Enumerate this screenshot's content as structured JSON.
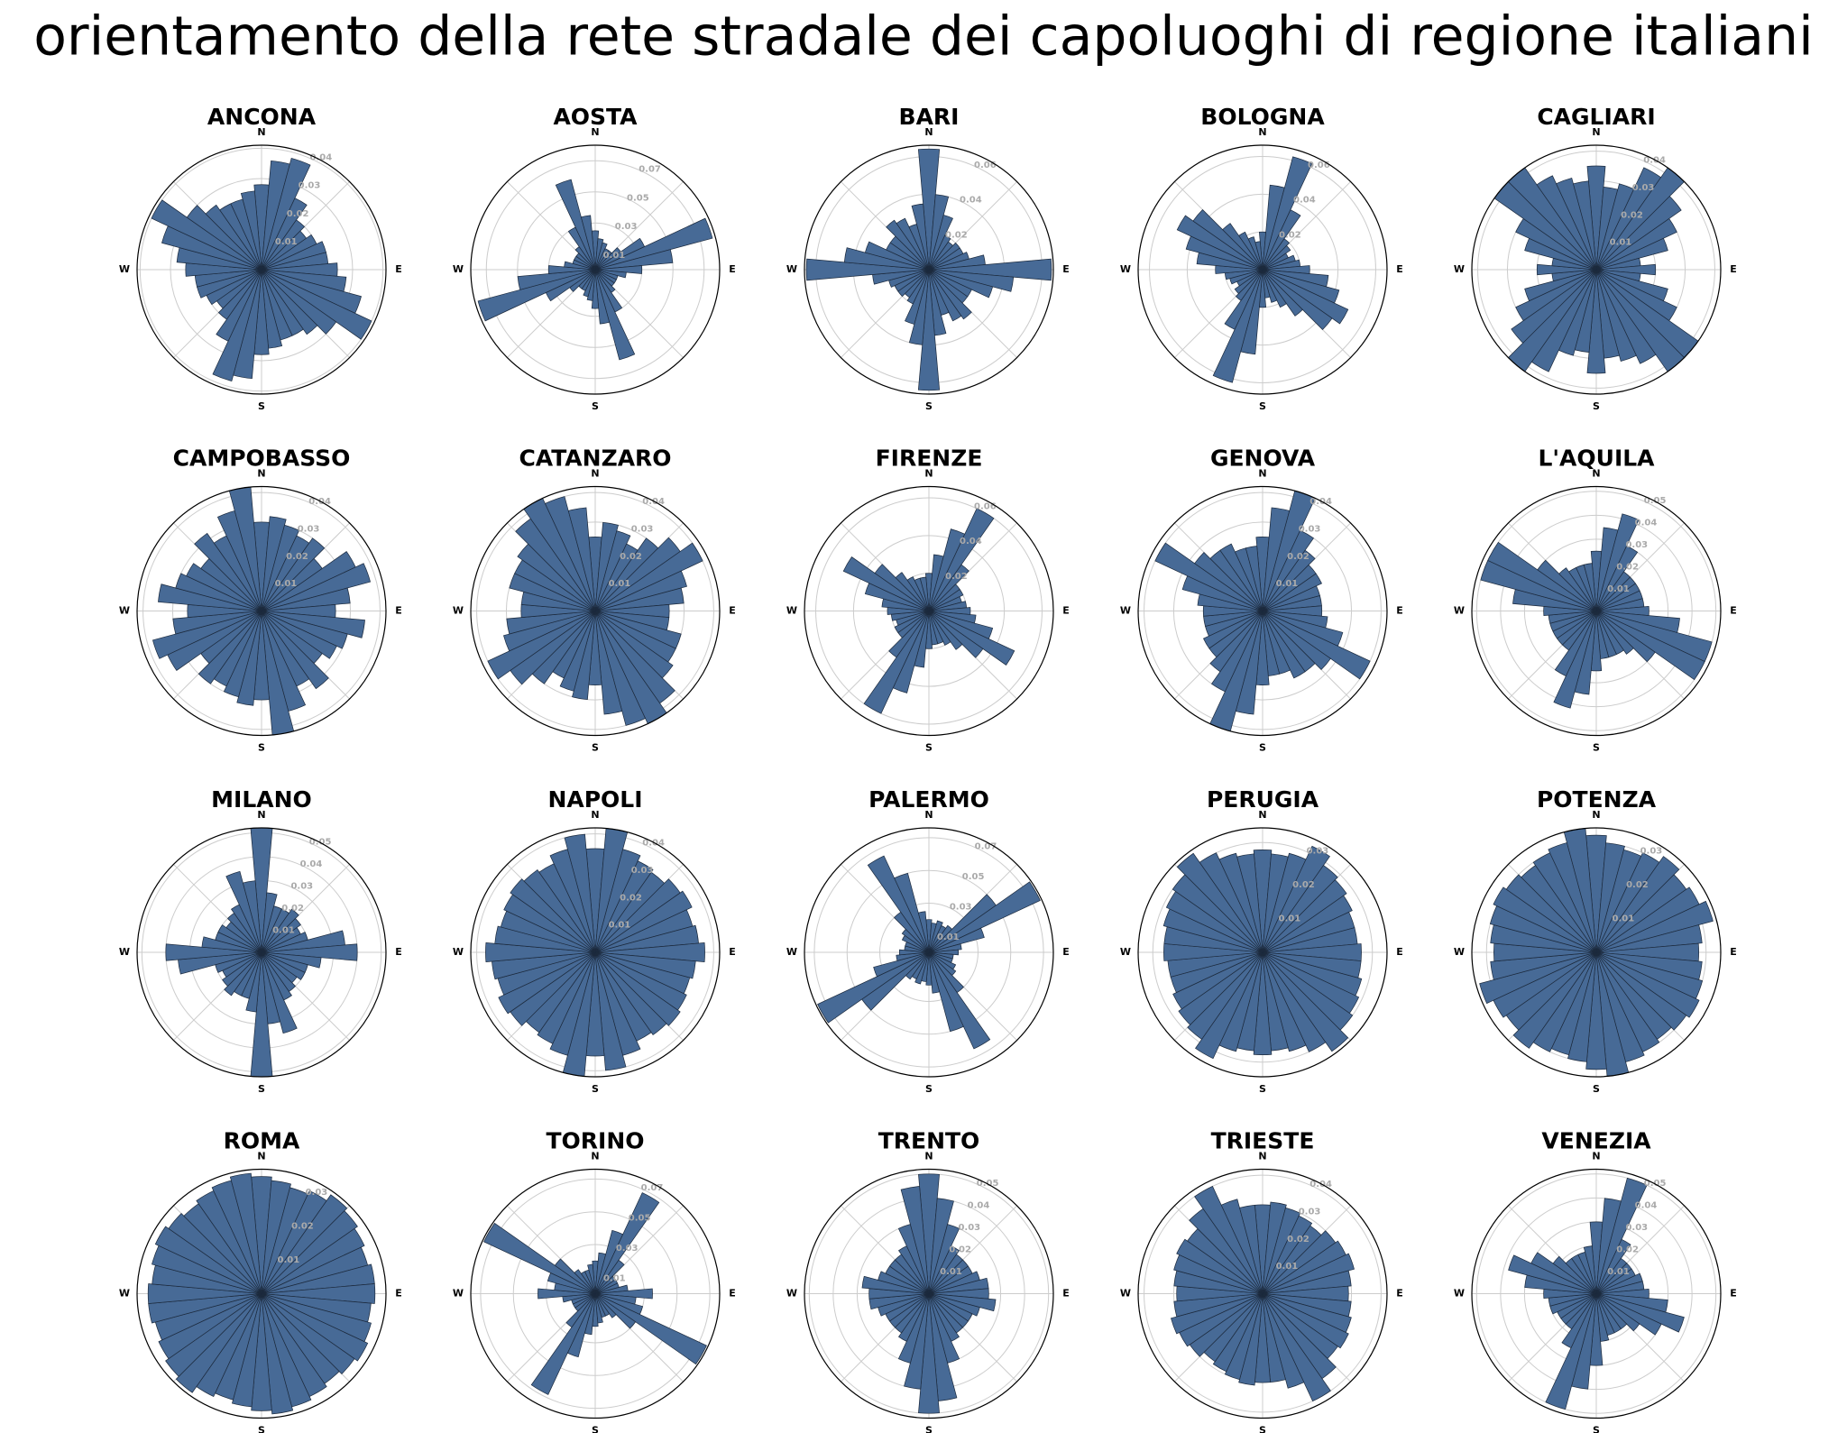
{
  "title": "orientamento della rete stradale dei capoluoghi di regione italiani",
  "chart_data": [
    {
      "type": "polar_bar",
      "title": "ANCONA",
      "directions": [
        "N",
        "E",
        "S",
        "W"
      ],
      "color": "#476a96",
      "ylim": [
        0,
        0.041
      ],
      "yticks": [
        0.01,
        0.02,
        0.03,
        0.04
      ],
      "values": [
        0.028,
        0.036,
        0.038,
        0.026,
        0.02,
        0.018,
        0.02,
        0.022,
        0.022,
        0.025,
        0.028,
        0.034,
        0.04,
        0.03,
        0.026,
        0.024,
        0.024,
        0.026,
        0.028,
        0.036,
        0.038,
        0.026,
        0.02,
        0.018,
        0.02,
        0.022,
        0.022,
        0.025,
        0.028,
        0.034,
        0.04,
        0.03,
        0.026,
        0.024,
        0.024,
        0.026
      ]
    },
    {
      "type": "polar_bar",
      "title": "AOSTA",
      "directions": [
        "N",
        "E",
        "S",
        "W"
      ],
      "color": "#476a96",
      "ylim": [
        0,
        0.08
      ],
      "yticks": [
        0.01,
        0.03,
        0.05,
        0.07
      ],
      "values": [
        0.025,
        0.02,
        0.018,
        0.015,
        0.015,
        0.02,
        0.035,
        0.078,
        0.05,
        0.03,
        0.02,
        0.015,
        0.015,
        0.015,
        0.018,
        0.03,
        0.06,
        0.035,
        0.025,
        0.02,
        0.018,
        0.015,
        0.015,
        0.02,
        0.035,
        0.078,
        0.05,
        0.03,
        0.02,
        0.015,
        0.015,
        0.015,
        0.018,
        0.03,
        0.06,
        0.035
      ]
    },
    {
      "type": "polar_bar",
      "title": "BARI",
      "directions": [
        "N",
        "E",
        "S",
        "W"
      ],
      "color": "#476a96",
      "ylim": [
        0,
        0.066
      ],
      "yticks": [
        0.02,
        0.04,
        0.06
      ],
      "values": [
        0.064,
        0.04,
        0.03,
        0.02,
        0.018,
        0.02,
        0.02,
        0.022,
        0.03,
        0.065,
        0.045,
        0.035,
        0.025,
        0.025,
        0.032,
        0.03,
        0.025,
        0.035,
        0.064,
        0.04,
        0.03,
        0.02,
        0.018,
        0.02,
        0.02,
        0.022,
        0.03,
        0.065,
        0.045,
        0.035,
        0.025,
        0.025,
        0.032,
        0.03,
        0.025,
        0.035
      ]
    },
    {
      "type": "polar_bar",
      "title": "BOLOGNA",
      "directions": [
        "N",
        "E",
        "S",
        "W"
      ],
      "color": "#476a96",
      "ylim": [
        0,
        0.066
      ],
      "yticks": [
        0.02,
        0.04,
        0.06
      ],
      "values": [
        0.02,
        0.045,
        0.062,
        0.035,
        0.02,
        0.018,
        0.015,
        0.018,
        0.02,
        0.025,
        0.035,
        0.042,
        0.05,
        0.045,
        0.03,
        0.022,
        0.018,
        0.015,
        0.02,
        0.045,
        0.062,
        0.035,
        0.02,
        0.018,
        0.015,
        0.018,
        0.02,
        0.025,
        0.035,
        0.042,
        0.05,
        0.045,
        0.03,
        0.022,
        0.018,
        0.015
      ]
    },
    {
      "type": "polar_bar",
      "title": "CAGLIARI",
      "directions": [
        "N",
        "E",
        "S",
        "W"
      ],
      "color": "#476a96",
      "ylim": [
        0,
        0.042
      ],
      "yticks": [
        0.01,
        0.02,
        0.03,
        0.04
      ],
      "values": [
        0.035,
        0.028,
        0.03,
        0.038,
        0.042,
        0.035,
        0.03,
        0.025,
        0.015,
        0.02,
        0.015,
        0.025,
        0.03,
        0.042,
        0.042,
        0.035,
        0.032,
        0.03,
        0.035,
        0.028,
        0.03,
        0.038,
        0.042,
        0.035,
        0.03,
        0.025,
        0.015,
        0.02,
        0.015,
        0.025,
        0.03,
        0.042,
        0.042,
        0.035,
        0.032,
        0.03
      ]
    },
    {
      "type": "polar_bar",
      "title": "CAMPOBASSO",
      "directions": [
        "N",
        "E",
        "S",
        "W"
      ],
      "color": "#476a96",
      "ylim": [
        0,
        0.042
      ],
      "yticks": [
        0.01,
        0.02,
        0.03,
        0.04
      ],
      "values": [
        0.03,
        0.032,
        0.03,
        0.028,
        0.03,
        0.025,
        0.035,
        0.038,
        0.03,
        0.025,
        0.035,
        0.03,
        0.028,
        0.025,
        0.032,
        0.028,
        0.035,
        0.042,
        0.03,
        0.032,
        0.03,
        0.028,
        0.03,
        0.025,
        0.035,
        0.038,
        0.03,
        0.025,
        0.035,
        0.03,
        0.028,
        0.025,
        0.032,
        0.028,
        0.035,
        0.042
      ]
    },
    {
      "type": "polar_bar",
      "title": "CATANZARO",
      "directions": [
        "N",
        "E",
        "S",
        "W"
      ],
      "color": "#476a96",
      "ylim": [
        0,
        0.042
      ],
      "yticks": [
        0.01,
        0.02,
        0.03,
        0.04
      ],
      "values": [
        0.025,
        0.03,
        0.028,
        0.025,
        0.03,
        0.035,
        0.04,
        0.032,
        0.03,
        0.025,
        0.025,
        0.03,
        0.03,
        0.032,
        0.038,
        0.042,
        0.04,
        0.035,
        0.025,
        0.03,
        0.028,
        0.025,
        0.03,
        0.035,
        0.04,
        0.032,
        0.03,
        0.025,
        0.025,
        0.03,
        0.03,
        0.032,
        0.038,
        0.042,
        0.04,
        0.035
      ]
    },
    {
      "type": "polar_bar",
      "title": "FIRENZE",
      "directions": [
        "N",
        "E",
        "S",
        "W"
      ],
      "color": "#476a96",
      "ylim": [
        0,
        0.066
      ],
      "yticks": [
        0.02,
        0.04,
        0.06
      ],
      "values": [
        0.02,
        0.03,
        0.045,
        0.06,
        0.03,
        0.02,
        0.02,
        0.018,
        0.02,
        0.022,
        0.025,
        0.035,
        0.05,
        0.035,
        0.025,
        0.02,
        0.018,
        0.018,
        0.02,
        0.03,
        0.045,
        0.06,
        0.03,
        0.02,
        0.02,
        0.018,
        0.02,
        0.022,
        0.025,
        0.035,
        0.05,
        0.035,
        0.025,
        0.02,
        0.018,
        0.018
      ]
    },
    {
      "type": "polar_bar",
      "title": "GENOVA",
      "directions": [
        "N",
        "E",
        "S",
        "W"
      ],
      "color": "#476a96",
      "ylim": [
        0,
        0.042
      ],
      "yticks": [
        0.01,
        0.02,
        0.03,
        0.04
      ],
      "values": [
        0.025,
        0.035,
        0.042,
        0.03,
        0.025,
        0.022,
        0.022,
        0.02,
        0.02,
        0.02,
        0.022,
        0.028,
        0.04,
        0.028,
        0.025,
        0.025,
        0.022,
        0.022,
        0.025,
        0.035,
        0.042,
        0.03,
        0.025,
        0.022,
        0.022,
        0.02,
        0.02,
        0.02,
        0.022,
        0.028,
        0.04,
        0.028,
        0.025,
        0.025,
        0.022,
        0.022
      ]
    },
    {
      "type": "polar_bar",
      "title": "L'AQUILA",
      "directions": [
        "N",
        "E",
        "S",
        "W"
      ],
      "color": "#476a96",
      "ylim": [
        0,
        0.052
      ],
      "yticks": [
        0.01,
        0.02,
        0.03,
        0.04,
        0.05
      ],
      "values": [
        0.025,
        0.035,
        0.042,
        0.03,
        0.02,
        0.02,
        0.02,
        0.02,
        0.02,
        0.022,
        0.035,
        0.05,
        0.05,
        0.03,
        0.022,
        0.02,
        0.02,
        0.02,
        0.025,
        0.035,
        0.042,
        0.03,
        0.02,
        0.02,
        0.02,
        0.02,
        0.02,
        0.022,
        0.035,
        0.05,
        0.05,
        0.03,
        0.022,
        0.02,
        0.02,
        0.02
      ]
    },
    {
      "type": "polar_bar",
      "title": "MILANO",
      "directions": [
        "N",
        "E",
        "S",
        "W"
      ],
      "color": "#476a96",
      "ylim": [
        0,
        0.052
      ],
      "yticks": [
        0.01,
        0.02,
        0.03,
        0.04,
        0.05
      ],
      "values": [
        0.052,
        0.025,
        0.02,
        0.02,
        0.022,
        0.02,
        0.018,
        0.02,
        0.035,
        0.04,
        0.025,
        0.02,
        0.02,
        0.018,
        0.02,
        0.022,
        0.035,
        0.03,
        0.052,
        0.025,
        0.02,
        0.02,
        0.022,
        0.02,
        0.018,
        0.02,
        0.035,
        0.04,
        0.025,
        0.02,
        0.02,
        0.018,
        0.02,
        0.022,
        0.035,
        0.03
      ]
    },
    {
      "type": "polar_bar",
      "title": "NAPOLI",
      "directions": [
        "N",
        "E",
        "S",
        "W"
      ],
      "color": "#476a96",
      "ylim": [
        0,
        0.042
      ],
      "yticks": [
        0.01,
        0.02,
        0.03,
        0.04
      ],
      "values": [
        0.035,
        0.042,
        0.036,
        0.034,
        0.033,
        0.035,
        0.036,
        0.034,
        0.035,
        0.037,
        0.034,
        0.033,
        0.034,
        0.035,
        0.034,
        0.033,
        0.036,
        0.04,
        0.035,
        0.042,
        0.036,
        0.034,
        0.033,
        0.035,
        0.036,
        0.034,
        0.035,
        0.037,
        0.034,
        0.033,
        0.034,
        0.035,
        0.034,
        0.033,
        0.036,
        0.04
      ]
    },
    {
      "type": "polar_bar",
      "title": "PALERMO",
      "directions": [
        "N",
        "E",
        "S",
        "W"
      ],
      "color": "#476a96",
      "ylim": [
        0,
        0.076
      ],
      "yticks": [
        0.01,
        0.03,
        0.05,
        0.07
      ],
      "values": [
        0.02,
        0.018,
        0.02,
        0.018,
        0.02,
        0.05,
        0.075,
        0.035,
        0.02,
        0.018,
        0.015,
        0.015,
        0.018,
        0.02,
        0.03,
        0.065,
        0.05,
        0.025,
        0.02,
        0.018,
        0.02,
        0.018,
        0.02,
        0.05,
        0.075,
        0.035,
        0.02,
        0.018,
        0.015,
        0.015,
        0.018,
        0.02,
        0.03,
        0.065,
        0.05,
        0.025
      ]
    },
    {
      "type": "polar_bar",
      "title": "PERUGIA",
      "directions": [
        "N",
        "E",
        "S",
        "W"
      ],
      "color": "#476a96",
      "ylim": [
        0,
        0.034
      ],
      "yticks": [
        0.01,
        0.02,
        0.03
      ],
      "values": [
        0.028,
        0.027,
        0.028,
        0.032,
        0.029,
        0.028,
        0.027,
        0.026,
        0.026,
        0.027,
        0.027,
        0.028,
        0.029,
        0.03,
        0.033,
        0.03,
        0.028,
        0.027,
        0.028,
        0.027,
        0.028,
        0.032,
        0.029,
        0.028,
        0.027,
        0.026,
        0.026,
        0.027,
        0.027,
        0.028,
        0.029,
        0.03,
        0.033,
        0.03,
        0.028,
        0.027
      ]
    },
    {
      "type": "polar_bar",
      "title": "POTENZA",
      "directions": [
        "N",
        "E",
        "S",
        "W"
      ],
      "color": "#476a96",
      "ylim": [
        0,
        0.034
      ],
      "yticks": [
        0.01,
        0.02,
        0.03
      ],
      "values": [
        0.032,
        0.03,
        0.029,
        0.03,
        0.032,
        0.03,
        0.031,
        0.033,
        0.029,
        0.028,
        0.029,
        0.03,
        0.031,
        0.03,
        0.029,
        0.03,
        0.031,
        0.034,
        0.032,
        0.03,
        0.029,
        0.03,
        0.032,
        0.03,
        0.031,
        0.033,
        0.029,
        0.028,
        0.029,
        0.03,
        0.031,
        0.03,
        0.029,
        0.03,
        0.031,
        0.034
      ]
    },
    {
      "type": "polar_bar",
      "title": "ROMA",
      "directions": [
        "N",
        "E",
        "S",
        "W"
      ],
      "color": "#476a96",
      "ylim": [
        0,
        0.034
      ],
      "yticks": [
        0.01,
        0.02,
        0.03
      ],
      "values": [
        0.032,
        0.031,
        0.03,
        0.031,
        0.033,
        0.032,
        0.031,
        0.03,
        0.031,
        0.031,
        0.03,
        0.031,
        0.032,
        0.031,
        0.03,
        0.031,
        0.032,
        0.033,
        0.032,
        0.031,
        0.03,
        0.031,
        0.033,
        0.032,
        0.031,
        0.03,
        0.031,
        0.031,
        0.03,
        0.031,
        0.032,
        0.031,
        0.03,
        0.031,
        0.032,
        0.033
      ]
    },
    {
      "type": "polar_bar",
      "title": "TORINO",
      "directions": [
        "N",
        "E",
        "S",
        "W"
      ],
      "color": "#476a96",
      "ylim": [
        0,
        0.076
      ],
      "yticks": [
        0.01,
        0.03,
        0.05,
        0.07
      ],
      "values": [
        0.02,
        0.025,
        0.04,
        0.068,
        0.025,
        0.015,
        0.015,
        0.015,
        0.02,
        0.035,
        0.025,
        0.03,
        0.075,
        0.03,
        0.018,
        0.015,
        0.015,
        0.018,
        0.02,
        0.025,
        0.04,
        0.068,
        0.025,
        0.015,
        0.015,
        0.015,
        0.02,
        0.035,
        0.025,
        0.03,
        0.075,
        0.03,
        0.018,
        0.015,
        0.015,
        0.018
      ]
    },
    {
      "type": "polar_bar",
      "title": "TRENTO",
      "directions": [
        "N",
        "E",
        "S",
        "W"
      ],
      "color": "#476a96",
      "ylim": [
        0,
        0.052
      ],
      "yticks": [
        0.01,
        0.02,
        0.03,
        0.04,
        0.05
      ],
      "values": [
        0.05,
        0.04,
        0.03,
        0.022,
        0.02,
        0.02,
        0.02,
        0.022,
        0.025,
        0.025,
        0.028,
        0.022,
        0.02,
        0.02,
        0.02,
        0.022,
        0.03,
        0.045,
        0.05,
        0.04,
        0.03,
        0.022,
        0.02,
        0.02,
        0.02,
        0.022,
        0.025,
        0.025,
        0.028,
        0.022,
        0.02,
        0.02,
        0.02,
        0.022,
        0.03,
        0.045
      ]
    },
    {
      "type": "polar_bar",
      "title": "TRIESTE",
      "directions": [
        "N",
        "E",
        "S",
        "W"
      ],
      "color": "#476a96",
      "ylim": [
        0,
        0.042
      ],
      "yticks": [
        0.01,
        0.02,
        0.03,
        0.04
      ],
      "values": [
        0.03,
        0.031,
        0.03,
        0.029,
        0.028,
        0.03,
        0.031,
        0.032,
        0.03,
        0.029,
        0.03,
        0.031,
        0.032,
        0.031,
        0.035,
        0.04,
        0.033,
        0.03,
        0.03,
        0.031,
        0.03,
        0.029,
        0.028,
        0.03,
        0.031,
        0.032,
        0.03,
        0.029,
        0.03,
        0.031,
        0.032,
        0.031,
        0.035,
        0.04,
        0.033,
        0.03
      ]
    },
    {
      "type": "polar_bar",
      "title": "VENEZIA",
      "directions": [
        "N",
        "E",
        "S",
        "W"
      ],
      "color": "#476a96",
      "ylim": [
        0,
        0.052
      ],
      "yticks": [
        0.01,
        0.02,
        0.03,
        0.04,
        0.05
      ],
      "values": [
        0.03,
        0.04,
        0.05,
        0.025,
        0.018,
        0.018,
        0.018,
        0.02,
        0.02,
        0.022,
        0.03,
        0.038,
        0.03,
        0.022,
        0.018,
        0.018,
        0.018,
        0.02,
        0.03,
        0.04,
        0.05,
        0.025,
        0.018,
        0.018,
        0.018,
        0.02,
        0.02,
        0.022,
        0.03,
        0.038,
        0.03,
        0.022,
        0.018,
        0.018,
        0.018,
        0.02
      ]
    }
  ]
}
